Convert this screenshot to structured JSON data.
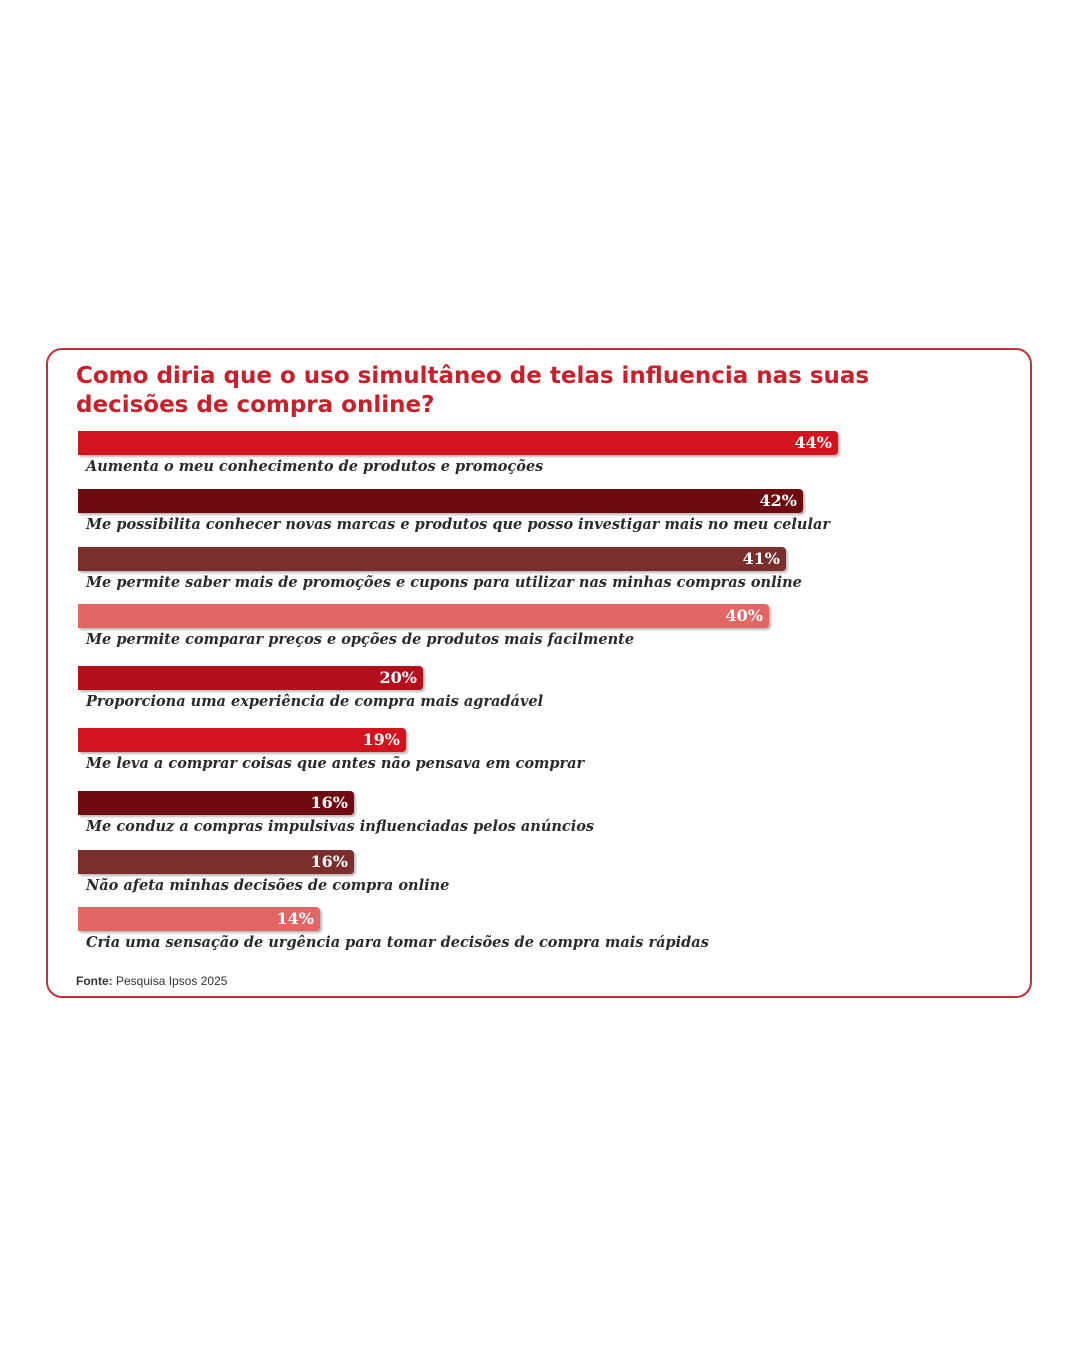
{
  "chart_data": {
    "type": "bar",
    "orientation": "horizontal",
    "title": "Como diria que o uso simultâneo de telas influencia nas suas decisões de compra online?",
    "max_value": 50,
    "bars": [
      {
        "label": "Aumenta o meu conhecimento de produtos e promoções",
        "value": 44,
        "value_label": "44%",
        "color": "#d3141e"
      },
      {
        "label": "Me possibilita conhecer novas marcas e produtos que posso investigar mais no meu celular",
        "value": 42,
        "value_label": "42%",
        "color": "#6e0b10"
      },
      {
        "label": "Me permite saber mais de promoções e cupons para utilizar nas minhas compras online",
        "value": 41,
        "value_label": "41%",
        "color": "#7a2f2d"
      },
      {
        "label": "Me permite comparar preços e opções de produtos mais facilmente",
        "value": 40,
        "value_label": "40%",
        "color": "#e16664"
      },
      {
        "label": "Proporciona uma experiência de compra mais agradável",
        "value": 20,
        "value_label": "20%",
        "color": "#b30f1c"
      },
      {
        "label": "Me leva a comprar coisas que antes não pensava em comprar",
        "value": 19,
        "value_label": "19%",
        "color": "#d3141e"
      },
      {
        "label": "Me conduz a compras impulsivas influenciadas pelos anúncios",
        "value": 16,
        "value_label": "16%",
        "color": "#6e0b10"
      },
      {
        "label": "Não afeta minhas decisões de compra online",
        "value": 16,
        "value_label": "16%",
        "color": "#7a2f2d"
      },
      {
        "label": "Cria uma sensação de urgência para tomar decisões de compra mais rápidas",
        "value": 14,
        "value_label": "14%",
        "color": "#e16664"
      }
    ]
  },
  "source": {
    "label": "Fonte:",
    "text": "Pesquisa Ipsos 2025"
  }
}
